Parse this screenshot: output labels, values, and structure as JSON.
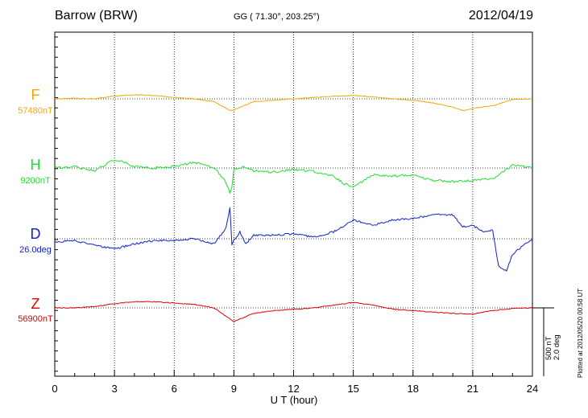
{
  "header": {
    "station": "Barrow (BRW)",
    "coords": "GG ( 71.30°, 203.25°)",
    "date": "2012/04/19"
  },
  "footnote": {
    "plotted": "Plotted at 2012/05/20 00:58 UT",
    "scale_nt": "500 nT",
    "scale_deg": "2.0 deg"
  },
  "chart_data": {
    "type": "line",
    "title": "Barrow (BRW)",
    "xlabel": "U T (hour)",
    "ylabel": "",
    "xlim": [
      0,
      24
    ],
    "x_ticks": [
      "0",
      "3",
      "6",
      "9",
      "12",
      "15",
      "18",
      "21",
      "24"
    ],
    "grid": true,
    "scale_bar": "500 nT / 2.0 deg",
    "series": [
      {
        "name": "F",
        "baseline_label": "57480nT",
        "color": "#f0a800",
        "unit": "nT",
        "x": [
          0,
          1,
          2,
          3,
          4,
          5,
          6,
          7,
          8,
          8.5,
          8.8,
          9,
          9.5,
          10,
          11,
          12,
          13,
          14,
          15,
          16,
          17,
          18,
          19,
          20,
          20.5,
          21,
          22,
          23,
          24
        ],
        "values": [
          57480,
          57485,
          57480,
          57500,
          57510,
          57505,
          57490,
          57480,
          57460,
          57420,
          57395,
          57400,
          57430,
          57460,
          57470,
          57480,
          57490,
          57500,
          57505,
          57495,
          57480,
          57470,
          57450,
          57420,
          57395,
          57410,
          57430,
          57475,
          57480
        ]
      },
      {
        "name": "H",
        "baseline_label": "9200nT",
        "color": "#22dd33",
        "unit": "nT",
        "x": [
          0,
          1,
          2,
          3,
          3.5,
          4,
          5,
          6,
          7,
          7.5,
          8,
          8.5,
          8.8,
          8.9,
          9,
          9.5,
          10,
          11,
          12,
          13,
          14,
          14.5,
          15,
          16,
          17,
          18,
          19,
          20,
          21,
          22,
          22.5,
          23,
          24
        ],
        "values": [
          9200,
          9210,
          9180,
          9260,
          9240,
          9210,
          9200,
          9210,
          9240,
          9230,
          9200,
          9120,
          9020,
          9060,
          9190,
          9210,
          9180,
          9170,
          9190,
          9175,
          9140,
          9090,
          9060,
          9150,
          9140,
          9150,
          9110,
          9100,
          9110,
          9120,
          9170,
          9220,
          9200
        ]
      },
      {
        "name": "D",
        "baseline_label": "26.0deg",
        "color": "#1020d0",
        "unit": "deg",
        "x": [
          0,
          1,
          2,
          3,
          4,
          5,
          6,
          7,
          8,
          8.6,
          8.8,
          8.9,
          9,
          9.3,
          9.6,
          10,
          11,
          12,
          13,
          14,
          15,
          16,
          17,
          18,
          19,
          20,
          20.5,
          21,
          21.5,
          22,
          22.3,
          22.7,
          23,
          24
        ],
        "values": [
          25.9,
          25.95,
          25.8,
          25.7,
          25.85,
          25.95,
          25.95,
          26.0,
          25.85,
          26.3,
          26.9,
          25.8,
          25.95,
          26.2,
          25.85,
          26.1,
          26.1,
          26.15,
          26.05,
          26.2,
          26.55,
          26.4,
          26.55,
          26.6,
          26.7,
          26.7,
          26.35,
          26.4,
          26.2,
          26.25,
          25.2,
          25.05,
          25.55,
          26.0
        ]
      },
      {
        "name": "Z",
        "baseline_label": "56900nT",
        "color": "#e00000",
        "unit": "nT",
        "x": [
          0,
          1,
          2,
          3,
          4,
          5,
          6,
          7,
          8,
          8.5,
          9,
          9.5,
          10,
          11,
          12,
          13,
          14,
          15,
          16,
          17,
          18,
          19,
          20,
          21,
          22,
          23,
          24
        ],
        "values": [
          56900,
          56900,
          56910,
          56930,
          56945,
          56945,
          56935,
          56925,
          56900,
          56850,
          56800,
          56830,
          56860,
          56880,
          56890,
          56900,
          56920,
          56940,
          56920,
          56890,
          56880,
          56870,
          56860,
          56855,
          56880,
          56895,
          56900
        ]
      }
    ]
  }
}
